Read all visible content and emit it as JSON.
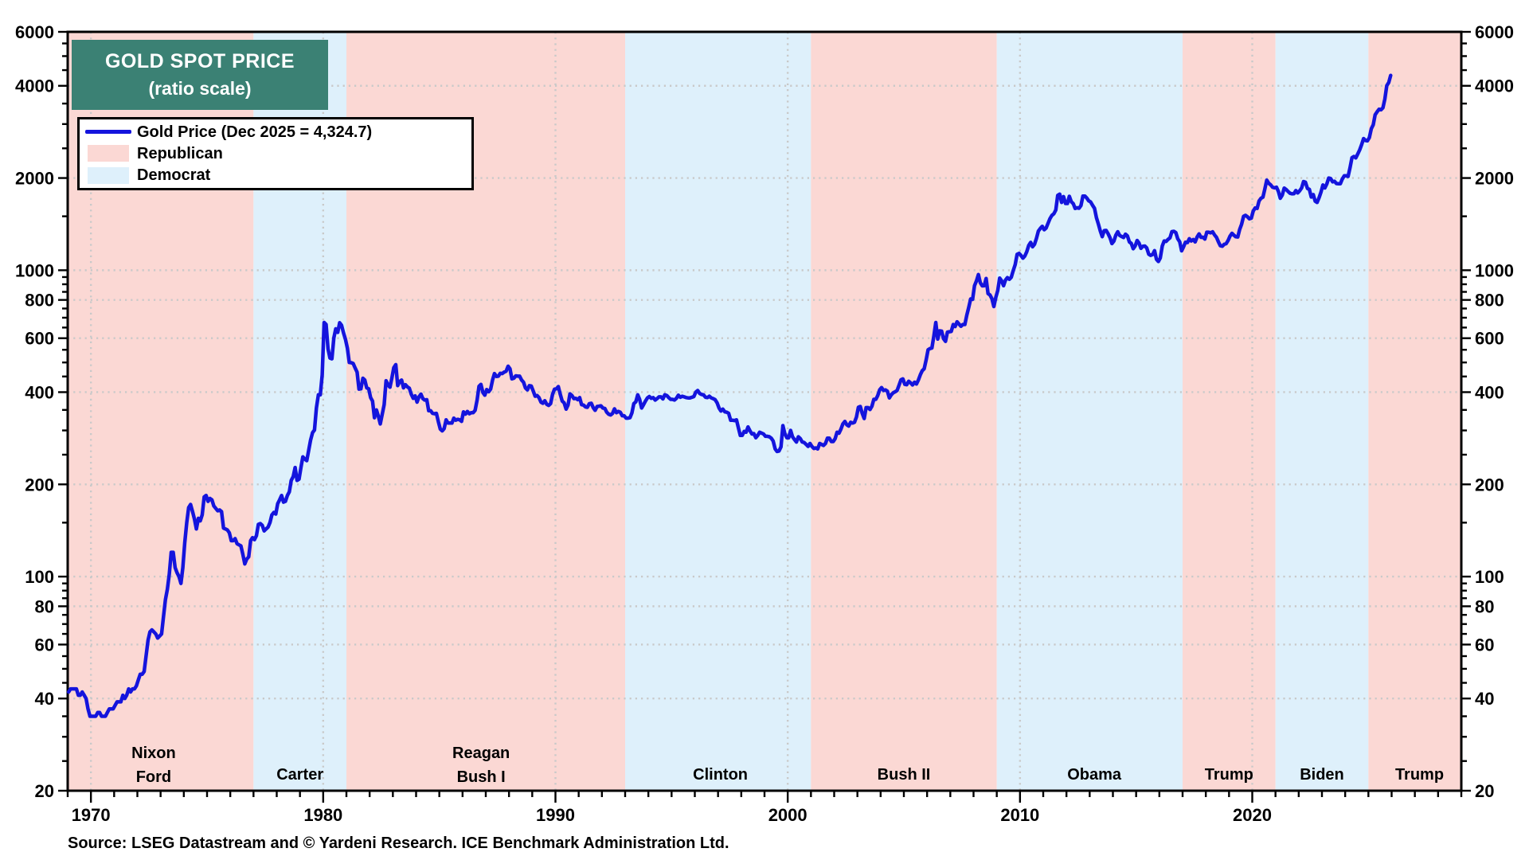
{
  "header": {
    "title": "GOLD SPOT PRICE",
    "subtitle": "(ratio scale)"
  },
  "legend": {
    "items": [
      {
        "label": "Gold Price (Dec 2025 = 4,324.7)",
        "swatch": "line",
        "color_key": "line"
      },
      {
        "label": "Republican",
        "swatch": "rect",
        "color_key": "republican"
      },
      {
        "label": "Democrat",
        "swatch": "rect",
        "color_key": "democrat"
      }
    ]
  },
  "footer": {
    "source": "Source: LSEG Datastream and © Yardeni Research. ICE Benchmark Administration Ltd."
  },
  "colors": {
    "line": "#1414dd",
    "republican": "#fbd8d4",
    "democrat": "#def0fb",
    "grid": "#c9c9c9",
    "axis": "#000000",
    "title_bg": "#3b8174",
    "title_fg": "#ffffff"
  },
  "chart_data": {
    "type": "line",
    "title": "GOLD SPOT PRICE",
    "subtitle": "(ratio scale)",
    "y_scale": "log",
    "grid": "dotted",
    "legend_position": "top-left",
    "x_range": [
      1969,
      2029
    ],
    "y_range": [
      20,
      6000
    ],
    "y_ticks_labeled": [
      20,
      40,
      60,
      80,
      100,
      200,
      400,
      600,
      800,
      1000,
      2000,
      4000,
      6000
    ],
    "y_ticks_minor": [
      25,
      30,
      35,
      45,
      50,
      55,
      65,
      70,
      75,
      85,
      90,
      95,
      150,
      250,
      300,
      350,
      450,
      500,
      550,
      650,
      700,
      750,
      850,
      900,
      950,
      1500,
      2500,
      3000,
      3500,
      4500,
      5000,
      5500
    ],
    "x_ticks_labeled": [
      1970,
      1980,
      1990,
      2000,
      2010,
      2020
    ],
    "x_minor_step": 1,
    "eras": [
      {
        "name": "Nixon Ford",
        "party": "R",
        "start": 1969,
        "end": 1977,
        "label_lines": [
          "Nixon",
          "Ford"
        ],
        "label_year": 1972.7
      },
      {
        "name": "Carter",
        "party": "D",
        "start": 1977,
        "end": 1981,
        "label_lines": [
          "Carter"
        ],
        "label_year": 1979.0
      },
      {
        "name": "Reagan Bush I",
        "party": "R",
        "start": 1981,
        "end": 1993,
        "label_lines": [
          "Reagan",
          "Bush I"
        ],
        "label_year": 1986.8
      },
      {
        "name": "Clinton",
        "party": "D",
        "start": 1993,
        "end": 2001,
        "label_lines": [
          "Clinton"
        ],
        "label_year": 1997.1
      },
      {
        "name": "Bush II",
        "party": "R",
        "start": 2001,
        "end": 2009,
        "label_lines": [
          "Bush II"
        ],
        "label_year": 2005.0
      },
      {
        "name": "Obama",
        "party": "D",
        "start": 2009,
        "end": 2017,
        "label_lines": [
          "Obama"
        ],
        "label_year": 2013.2
      },
      {
        "name": "Trump",
        "party": "R",
        "start": 2017,
        "end": 2021,
        "label_lines": [
          "Trump"
        ],
        "label_year": 2019.0
      },
      {
        "name": "Biden",
        "party": "D",
        "start": 2021,
        "end": 2025,
        "label_lines": [
          "Biden"
        ],
        "label_year": 2023.0
      },
      {
        "name": "Trump 2",
        "party": "R",
        "start": 2025,
        "end": 2029,
        "label_lines": [
          "Trump"
        ],
        "label_year": 2027.2
      }
    ],
    "series": [
      {
        "name": "Gold Price (Dec 2025 = 4,324.7)",
        "color_key": "line",
        "start_year": 1969,
        "frequency": "monthly",
        "last_point_label": "Dec 2025 = 4,324.7",
        "values": [
          42,
          43,
          43,
          43,
          43,
          41,
          41,
          42,
          41,
          40,
          37,
          35,
          35,
          35,
          35,
          36,
          36,
          35,
          35,
          35,
          36,
          37,
          37,
          37,
          38,
          39,
          39,
          39,
          41,
          40,
          41,
          43,
          42,
          43,
          43,
          44,
          46,
          48,
          48,
          49,
          55,
          62,
          66,
          67,
          66,
          65,
          63,
          64,
          65,
          74,
          84,
          91,
          102,
          120,
          120,
          107,
          103,
          100,
          95,
          107,
          129,
          150,
          168,
          172,
          163,
          154,
          143,
          155,
          152,
          159,
          182,
          184,
          176,
          180,
          178,
          170,
          167,
          164,
          165,
          163,
          144,
          143,
          142,
          139,
          131,
          131,
          133,
          128,
          127,
          126,
          118,
          110,
          114,
          116,
          131,
          134,
          132,
          136,
          148,
          149,
          147,
          141,
          143,
          145,
          150,
          159,
          162,
          160,
          173,
          178,
          184,
          175,
          176,
          184,
          189,
          206,
          212,
          227,
          206,
          208,
          227,
          246,
          242,
          239,
          258,
          279,
          295,
          301,
          355,
          392,
          392,
          455,
          675,
          665,
          554,
          517,
          514,
          601,
          644,
          627,
          674,
          661,
          624,
          595,
          557,
          500,
          499,
          496,
          480,
          465,
          409,
          410,
          444,
          438,
          413,
          410,
          384,
          374,
          330,
          350,
          334,
          315,
          339,
          364,
          436,
          422,
          415,
          445,
          481,
          492,
          420,
          433,
          438,
          413,
          423,
          416,
          412,
          394,
          382,
          389,
          371,
          386,
          394,
          381,
          377,
          378,
          348,
          348,
          341,
          340,
          341,
          320,
          303,
          299,
          304,
          325,
          317,
          317,
          317,
          329,
          324,
          326,
          325,
          321,
          345,
          339,
          346,
          340,
          343,
          343,
          349,
          377,
          418,
          424,
          399,
          391,
          408,
          401,
          409,
          438,
          460,
          450,
          451,
          461,
          460,
          465,
          468,
          486,
          477,
          442,
          444,
          452,
          451,
          451,
          438,
          431,
          413,
          407,
          420,
          419,
          404,
          388,
          390,
          384,
          371,
          368,
          375,
          365,
          362,
          367,
          394,
          409,
          410,
          417,
          393,
          374,
          369,
          352,
          363,
          395,
          390,
          381,
          382,
          378,
          384,
          364,
          363,
          358,
          357,
          367,
          368,
          356,
          349,
          359,
          360,
          361,
          355,
          354,
          344,
          339,
          337,
          341,
          353,
          343,
          346,
          344,
          335,
          335,
          329,
          329,
          330,
          342,
          367,
          372,
          392,
          379,
          355,
          364,
          374,
          383,
          387,
          382,
          384,
          377,
          381,
          386,
          386,
          380,
          392,
          390,
          384,
          379,
          379,
          377,
          382,
          391,
          385,
          388,
          386,
          384,
          383,
          383,
          385,
          387,
          400,
          405,
          396,
          393,
          392,
          385,
          384,
          388,
          383,
          381,
          378,
          369,
          355,
          347,
          352,
          345,
          344,
          341,
          324,
          324,
          323,
          325,
          306,
          289,
          289,
          298,
          296,
          308,
          299,
          292,
          293,
          284,
          289,
          296,
          294,
          292,
          287,
          287,
          286,
          283,
          277,
          261,
          256,
          257,
          265,
          311,
          293,
          284,
          284,
          300,
          286,
          280,
          275,
          286,
          282,
          275,
          274,
          270,
          266,
          272,
          266,
          262,
          263,
          261,
          272,
          270,
          268,
          272,
          283,
          283,
          276,
          276,
          282,
          296,
          294,
          303,
          315,
          321,
          313,
          310,
          319,
          317,
          319,
          332,
          357,
          359,
          341,
          328,
          356,
          356,
          351,
          360,
          379,
          379,
          390,
          407,
          414,
          405,
          407,
          403,
          383,
          392,
          398,
          401,
          405,
          421,
          439,
          442,
          424,
          423,
          434,
          429,
          422,
          431,
          425,
          438,
          456,
          470,
          477,
          510,
          550,
          555,
          557,
          611,
          675,
          596,
          634,
          633,
          598,
          586,
          628,
          630,
          631,
          665,
          655,
          679,
          667,
          656,
          665,
          665,
          713,
          755,
          806,
          803,
          890,
          922,
          968,
          910,
          889,
          890,
          940,
          839,
          830,
          807,
          761,
          816,
          859,
          943,
          924,
          890,
          929,
          946,
          934,
          949,
          997,
          1043,
          1127,
          1135,
          1118,
          1095,
          1113,
          1149,
          1205,
          1233,
          1193,
          1216,
          1271,
          1342,
          1370,
          1391,
          1356,
          1373,
          1424,
          1474,
          1510,
          1529,
          1573,
          1756,
          1772,
          1665,
          1739,
          1652,
          1652,
          1743,
          1674,
          1650,
          1591,
          1599,
          1594,
          1626,
          1745,
          1747,
          1721,
          1685,
          1671,
          1628,
          1593,
          1485,
          1414,
          1343,
          1287,
          1347,
          1349,
          1317,
          1276,
          1222,
          1244,
          1300,
          1336,
          1299,
          1289,
          1279,
          1311,
          1295,
          1237,
          1223,
          1175,
          1201,
          1251,
          1227,
          1179,
          1198,
          1199,
          1182,
          1128,
          1118,
          1125,
          1159,
          1086,
          1068,
          1097,
          1200,
          1246,
          1242,
          1261,
          1276,
          1337,
          1340,
          1327,
          1267,
          1238,
          1157,
          1192,
          1234,
          1231,
          1267,
          1246,
          1260,
          1237,
          1283,
          1314,
          1280,
          1282,
          1264,
          1331,
          1331,
          1325,
          1335,
          1304,
          1282,
          1238,
          1202,
          1198,
          1215,
          1221,
          1250,
          1292,
          1320,
          1301,
          1286,
          1284,
          1359,
          1413,
          1500,
          1511,
          1495,
          1472,
          1479,
          1561,
          1597,
          1592,
          1683,
          1716,
          1732,
          1843,
          1969,
          1922,
          1900,
          1866,
          1858,
          1867,
          1808,
          1718,
          1760,
          1854,
          1835,
          1807,
          1784,
          1776,
          1777,
          1820,
          1788,
          1817,
          1856,
          1948,
          1937,
          1849,
          1837,
          1733,
          1765,
          1681,
          1665,
          1726,
          1798,
          1898,
          1855,
          1913,
          2000,
          1992,
          1943,
          1951,
          1919,
          1916,
          1915,
          1984,
          2033,
          2034,
          2023,
          2158,
          2331,
          2351,
          2327,
          2398,
          2471,
          2570,
          2690,
          2652,
          2644,
          2708,
          2897,
          2983,
          3218,
          3289,
          3354,
          3340,
          3392,
          3622,
          4004,
          4100,
          4324.7
        ]
      }
    ]
  }
}
